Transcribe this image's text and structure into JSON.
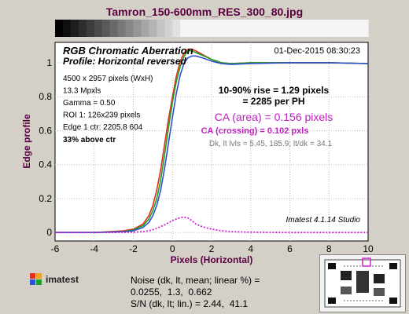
{
  "file_title": "Tamron_150-600mm_RES_300_80.jpg",
  "chart_data": {
    "type": "line",
    "title": "RGB Chromatic Aberration",
    "subtitle": "Profile: Horizontal reversed",
    "timestamp": "01-Dec-2015 08:30:23",
    "xlabel": "Pixels (Horizontal)",
    "ylabel": "Edge profile",
    "xlim": [
      -6,
      10
    ],
    "ylim": [
      -0.05,
      1.12
    ],
    "xticks": [
      -6,
      -4,
      -2,
      0,
      2,
      4,
      6,
      8,
      10
    ],
    "yticks": [
      0,
      0.2,
      0.4,
      0.6,
      0.8,
      1
    ],
    "x": [
      -6,
      -4,
      -2.5,
      -2,
      -1.5,
      -1.2,
      -1,
      -0.8,
      -0.6,
      -0.4,
      -0.2,
      0,
      0.2,
      0.4,
      0.6,
      0.8,
      1,
      1.2,
      1.5,
      2,
      2.5,
      3,
      4,
      6,
      8,
      10
    ],
    "series": [
      {
        "color": "#e03020",
        "values": [
          0,
          0,
          0.01,
          0.02,
          0.05,
          0.1,
          0.16,
          0.25,
          0.37,
          0.52,
          0.67,
          0.8,
          0.92,
          1.01,
          1.06,
          1.08,
          1.08,
          1.07,
          1.05,
          1.02,
          1.0,
          0.995,
          1.0,
          1.0,
          1.0,
          0.995
        ]
      },
      {
        "color": "#20a020",
        "values": [
          0,
          0,
          0.005,
          0.015,
          0.04,
          0.08,
          0.13,
          0.2,
          0.31,
          0.46,
          0.62,
          0.77,
          0.89,
          0.98,
          1.04,
          1.07,
          1.07,
          1.06,
          1.045,
          1.02,
          1.0,
          0.995,
          1.0,
          1.0,
          1.0,
          0.995
        ]
      },
      {
        "color": "#3050d0",
        "values": [
          0,
          0,
          0.005,
          0.01,
          0.03,
          0.06,
          0.1,
          0.16,
          0.25,
          0.38,
          0.53,
          0.68,
          0.82,
          0.93,
          1.0,
          1.03,
          1.04,
          1.04,
          1.03,
          1.01,
          0.995,
          0.99,
          0.995,
          1.0,
          1.0,
          0.995
        ]
      },
      {
        "color": "#d020d0",
        "dashed": true,
        "values": [
          0,
          0,
          0.001,
          0.002,
          0.005,
          0.01,
          0.017,
          0.025,
          0.035,
          0.045,
          0.058,
          0.07,
          0.08,
          0.088,
          0.09,
          0.085,
          0.07,
          0.05,
          0.035,
          0.02,
          0.01,
          0.005,
          0.002,
          0,
          0,
          0
        ]
      }
    ],
    "info_lines": [
      "4500 x 2957 pixels (WxH)",
      "13.3 Mpxls",
      "Gamma = 0.50",
      "ROI 1: 126x239 pixels",
      "Edge 1 ctr: 2205.8  604"
    ],
    "info_bold": "33% above ctr",
    "rise_line1": "10-90% rise = 1.29 pixels",
    "rise_line2": "= 2285 per PH",
    "ca_area": "CA (area) = 0.156 pixels",
    "ca_crossing": "CA (crossing) = 0.102 pxls",
    "levels": "Dk, lt lvls = 5.45, 185.9;  lt/dk = 34.1",
    "software": "Imatest 4.1.14  Studio",
    "colors": {
      "red": "#e03020",
      "green": "#20a020",
      "blue": "#3050d0",
      "magenta": "#d020d0",
      "title": "#5a0040"
    }
  },
  "noise": {
    "line1": "Noise (dk, lt, mean; linear %) =",
    "line2": "0.0255,  1.3,  0.662",
    "line3": "S/N (dk, lt; lin.) = 2.44,  41.1"
  },
  "logo": {
    "text": "imatest",
    "icon": "imatest-logo-icon"
  },
  "thumbnail": {
    "icon": "test-chart-thumbnail-icon"
  }
}
